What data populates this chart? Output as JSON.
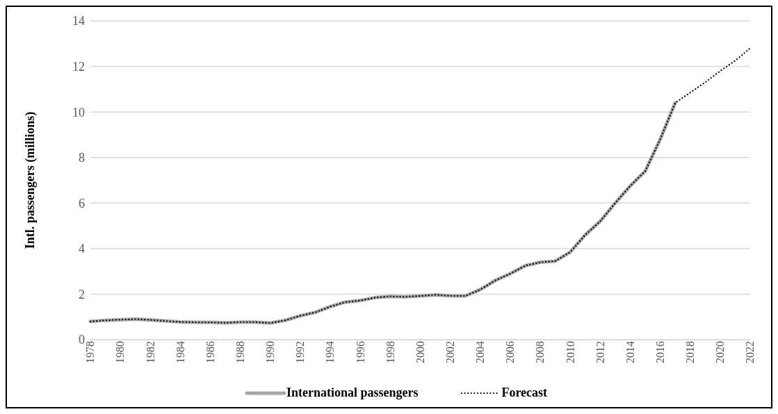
{
  "chart_data": {
    "type": "line",
    "ylabel": "Intl. passengers (millions)",
    "categories": [
      "1978",
      null,
      "1980",
      null,
      "1982",
      null,
      "1984",
      null,
      "1986",
      null,
      "1988",
      null,
      "1990",
      null,
      "1992",
      null,
      "1994",
      null,
      "1996",
      null,
      "1998",
      null,
      "2000",
      null,
      "2002",
      null,
      "2004",
      null,
      "2006",
      null,
      "2008",
      null,
      "2010",
      null,
      "2012",
      null,
      "2014",
      null,
      "2016",
      null,
      "2018",
      null,
      "2020",
      null,
      "2022"
    ],
    "series": [
      {
        "name": "International passengers",
        "color": "#a6a6a6",
        "line_style": "solid",
        "values": [
          0.8,
          0.85,
          0.88,
          0.9,
          0.87,
          0.82,
          0.78,
          0.76,
          0.76,
          0.74,
          0.77,
          0.77,
          0.73,
          0.85,
          1.05,
          1.2,
          1.45,
          1.65,
          1.72,
          1.85,
          1.9,
          1.88,
          1.92,
          1.97,
          1.93,
          1.92,
          2.2,
          2.6,
          2.9,
          3.25,
          3.4,
          3.45,
          3.85,
          4.6,
          5.2,
          6.0,
          6.75,
          7.4,
          8.8,
          10.4,
          null,
          null,
          null,
          null,
          null
        ]
      },
      {
        "name": "Forecast",
        "color": "#000000",
        "line_style": "dotted",
        "values": [
          0.8,
          0.85,
          0.88,
          0.9,
          0.87,
          0.82,
          0.78,
          0.76,
          0.76,
          0.74,
          0.77,
          0.77,
          0.73,
          0.85,
          1.05,
          1.2,
          1.45,
          1.65,
          1.72,
          1.85,
          1.9,
          1.88,
          1.92,
          1.97,
          1.93,
          1.92,
          2.2,
          2.6,
          2.9,
          3.25,
          3.4,
          3.45,
          3.85,
          4.6,
          5.2,
          6.0,
          6.75,
          7.4,
          8.8,
          10.4,
          10.85,
          11.3,
          11.8,
          12.25,
          12.8
        ]
      }
    ],
    "ylim": [
      0,
      14
    ],
    "yticks": [
      0,
      2,
      4,
      6,
      8,
      10,
      12,
      14
    ],
    "grid": "y",
    "legend": "bottom",
    "marker": "none"
  }
}
